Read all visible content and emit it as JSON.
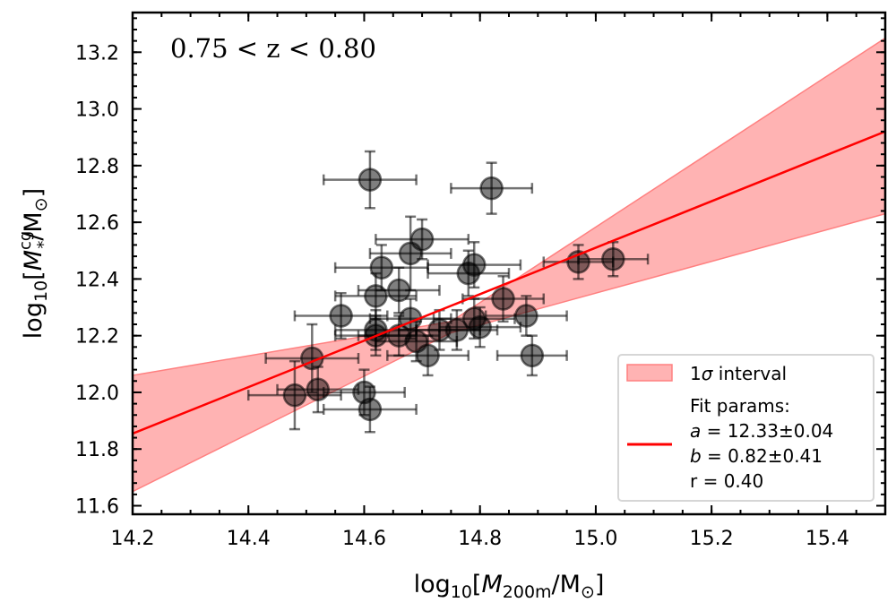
{
  "chart_data": {
    "type": "scatter",
    "annotation": "0.75 < z < 0.80",
    "xlabel": {
      "prefix": "log",
      "sub": "10",
      "open": "[",
      "var": "M",
      "var_sub": "200m",
      "unit": "/M",
      "unit_sub": "⊙",
      "close": "]"
    },
    "ylabel": {
      "prefix": "log",
      "sub": "10",
      "open": "[",
      "var": "M",
      "var_sup": "cg",
      "var_sub": "*",
      "unit": "/M",
      "unit_sub": "⊙",
      "close": "]"
    },
    "xlim": [
      14.2,
      15.5
    ],
    "ylim": [
      11.57,
      13.34
    ],
    "xticks": [
      14.2,
      14.4,
      14.6,
      14.8,
      15.0,
      15.2,
      15.4
    ],
    "xtick_labels": [
      "14.2",
      "14.4",
      "14.6",
      "14.8",
      "15.0",
      "15.2",
      "15.4"
    ],
    "yticks": [
      11.6,
      11.8,
      12.0,
      12.2,
      12.4,
      12.6,
      12.8,
      13.0,
      13.2
    ],
    "ytick_labels": [
      "11.6",
      "11.8",
      "12.0",
      "12.2",
      "12.4",
      "12.6",
      "12.8",
      "13.0",
      "13.2"
    ],
    "points": [
      {
        "x": 14.61,
        "y": 12.75,
        "xerr": 0.08,
        "yerr": 0.1
      },
      {
        "x": 14.82,
        "y": 12.72,
        "xerr": 0.07,
        "yerr": 0.09
      },
      {
        "x": 14.68,
        "y": 12.49,
        "xerr": 0.07,
        "yerr": 0.13
      },
      {
        "x": 14.7,
        "y": 12.54,
        "xerr": 0.08,
        "yerr": 0.07
      },
      {
        "x": 14.63,
        "y": 12.44,
        "xerr": 0.08,
        "yerr": 0.08
      },
      {
        "x": 14.78,
        "y": 12.42,
        "xerr": 0.07,
        "yerr": 0.08
      },
      {
        "x": 14.79,
        "y": 12.45,
        "xerr": 0.08,
        "yerr": 0.08
      },
      {
        "x": 14.97,
        "y": 12.46,
        "xerr": 0.06,
        "yerr": 0.06
      },
      {
        "x": 15.03,
        "y": 12.47,
        "xerr": 0.06,
        "yerr": 0.06
      },
      {
        "x": 14.66,
        "y": 12.36,
        "xerr": 0.07,
        "yerr": 0.08
      },
      {
        "x": 14.62,
        "y": 12.34,
        "xerr": 0.07,
        "yerr": 0.08
      },
      {
        "x": 14.84,
        "y": 12.33,
        "xerr": 0.07,
        "yerr": 0.08
      },
      {
        "x": 14.56,
        "y": 12.27,
        "xerr": 0.08,
        "yerr": 0.08
      },
      {
        "x": 14.88,
        "y": 12.27,
        "xerr": 0.07,
        "yerr": 0.07
      },
      {
        "x": 14.68,
        "y": 12.26,
        "xerr": 0.07,
        "yerr": 0.07
      },
      {
        "x": 14.79,
        "y": 12.26,
        "xerr": 0.07,
        "yerr": 0.07
      },
      {
        "x": 14.62,
        "y": 12.22,
        "xerr": 0.07,
        "yerr": 0.07
      },
      {
        "x": 14.73,
        "y": 12.22,
        "xerr": 0.07,
        "yerr": 0.07
      },
      {
        "x": 14.76,
        "y": 12.22,
        "xerr": 0.07,
        "yerr": 0.07
      },
      {
        "x": 14.66,
        "y": 12.2,
        "xerr": 0.07,
        "yerr": 0.07
      },
      {
        "x": 14.62,
        "y": 12.2,
        "xerr": 0.07,
        "yerr": 0.07
      },
      {
        "x": 14.69,
        "y": 12.18,
        "xerr": 0.07,
        "yerr": 0.07
      },
      {
        "x": 14.8,
        "y": 12.23,
        "xerr": 0.07,
        "yerr": 0.07
      },
      {
        "x": 14.71,
        "y": 12.13,
        "xerr": 0.07,
        "yerr": 0.07
      },
      {
        "x": 14.89,
        "y": 12.13,
        "xerr": 0.06,
        "yerr": 0.07
      },
      {
        "x": 14.51,
        "y": 12.12,
        "xerr": 0.08,
        "yerr": 0.12
      },
      {
        "x": 14.52,
        "y": 12.01,
        "xerr": 0.07,
        "yerr": 0.08
      },
      {
        "x": 14.48,
        "y": 11.99,
        "xerr": 0.08,
        "yerr": 0.12
      },
      {
        "x": 14.6,
        "y": 12.0,
        "xerr": 0.07,
        "yerr": 0.08
      },
      {
        "x": 14.61,
        "y": 11.94,
        "xerr": 0.08,
        "yerr": 0.08
      }
    ],
    "fit": {
      "a": 12.33,
      "b": 0.82,
      "pivot": 14.78
    },
    "band": {
      "x": [
        14.2,
        14.75,
        15.5
      ],
      "lower": [
        11.65,
        12.21,
        12.63
      ],
      "upper": [
        12.06,
        12.25,
        13.25
      ]
    },
    "colors": {
      "line": "#ff0000",
      "band_fill": "#ffb3b3",
      "band_edge": "#ff8080",
      "marker": "#000000"
    },
    "legend": {
      "position": "lower-right",
      "interval_prefix": "1",
      "interval_symbol": "σ",
      "interval_suffix": " interval",
      "fit_title": "Fit params:",
      "a_symbol": "a",
      "a_text": " = 12.33±0.04",
      "b_symbol": "b",
      "b_text": " = 0.82±0.41",
      "r_text": "r = 0.40"
    }
  }
}
